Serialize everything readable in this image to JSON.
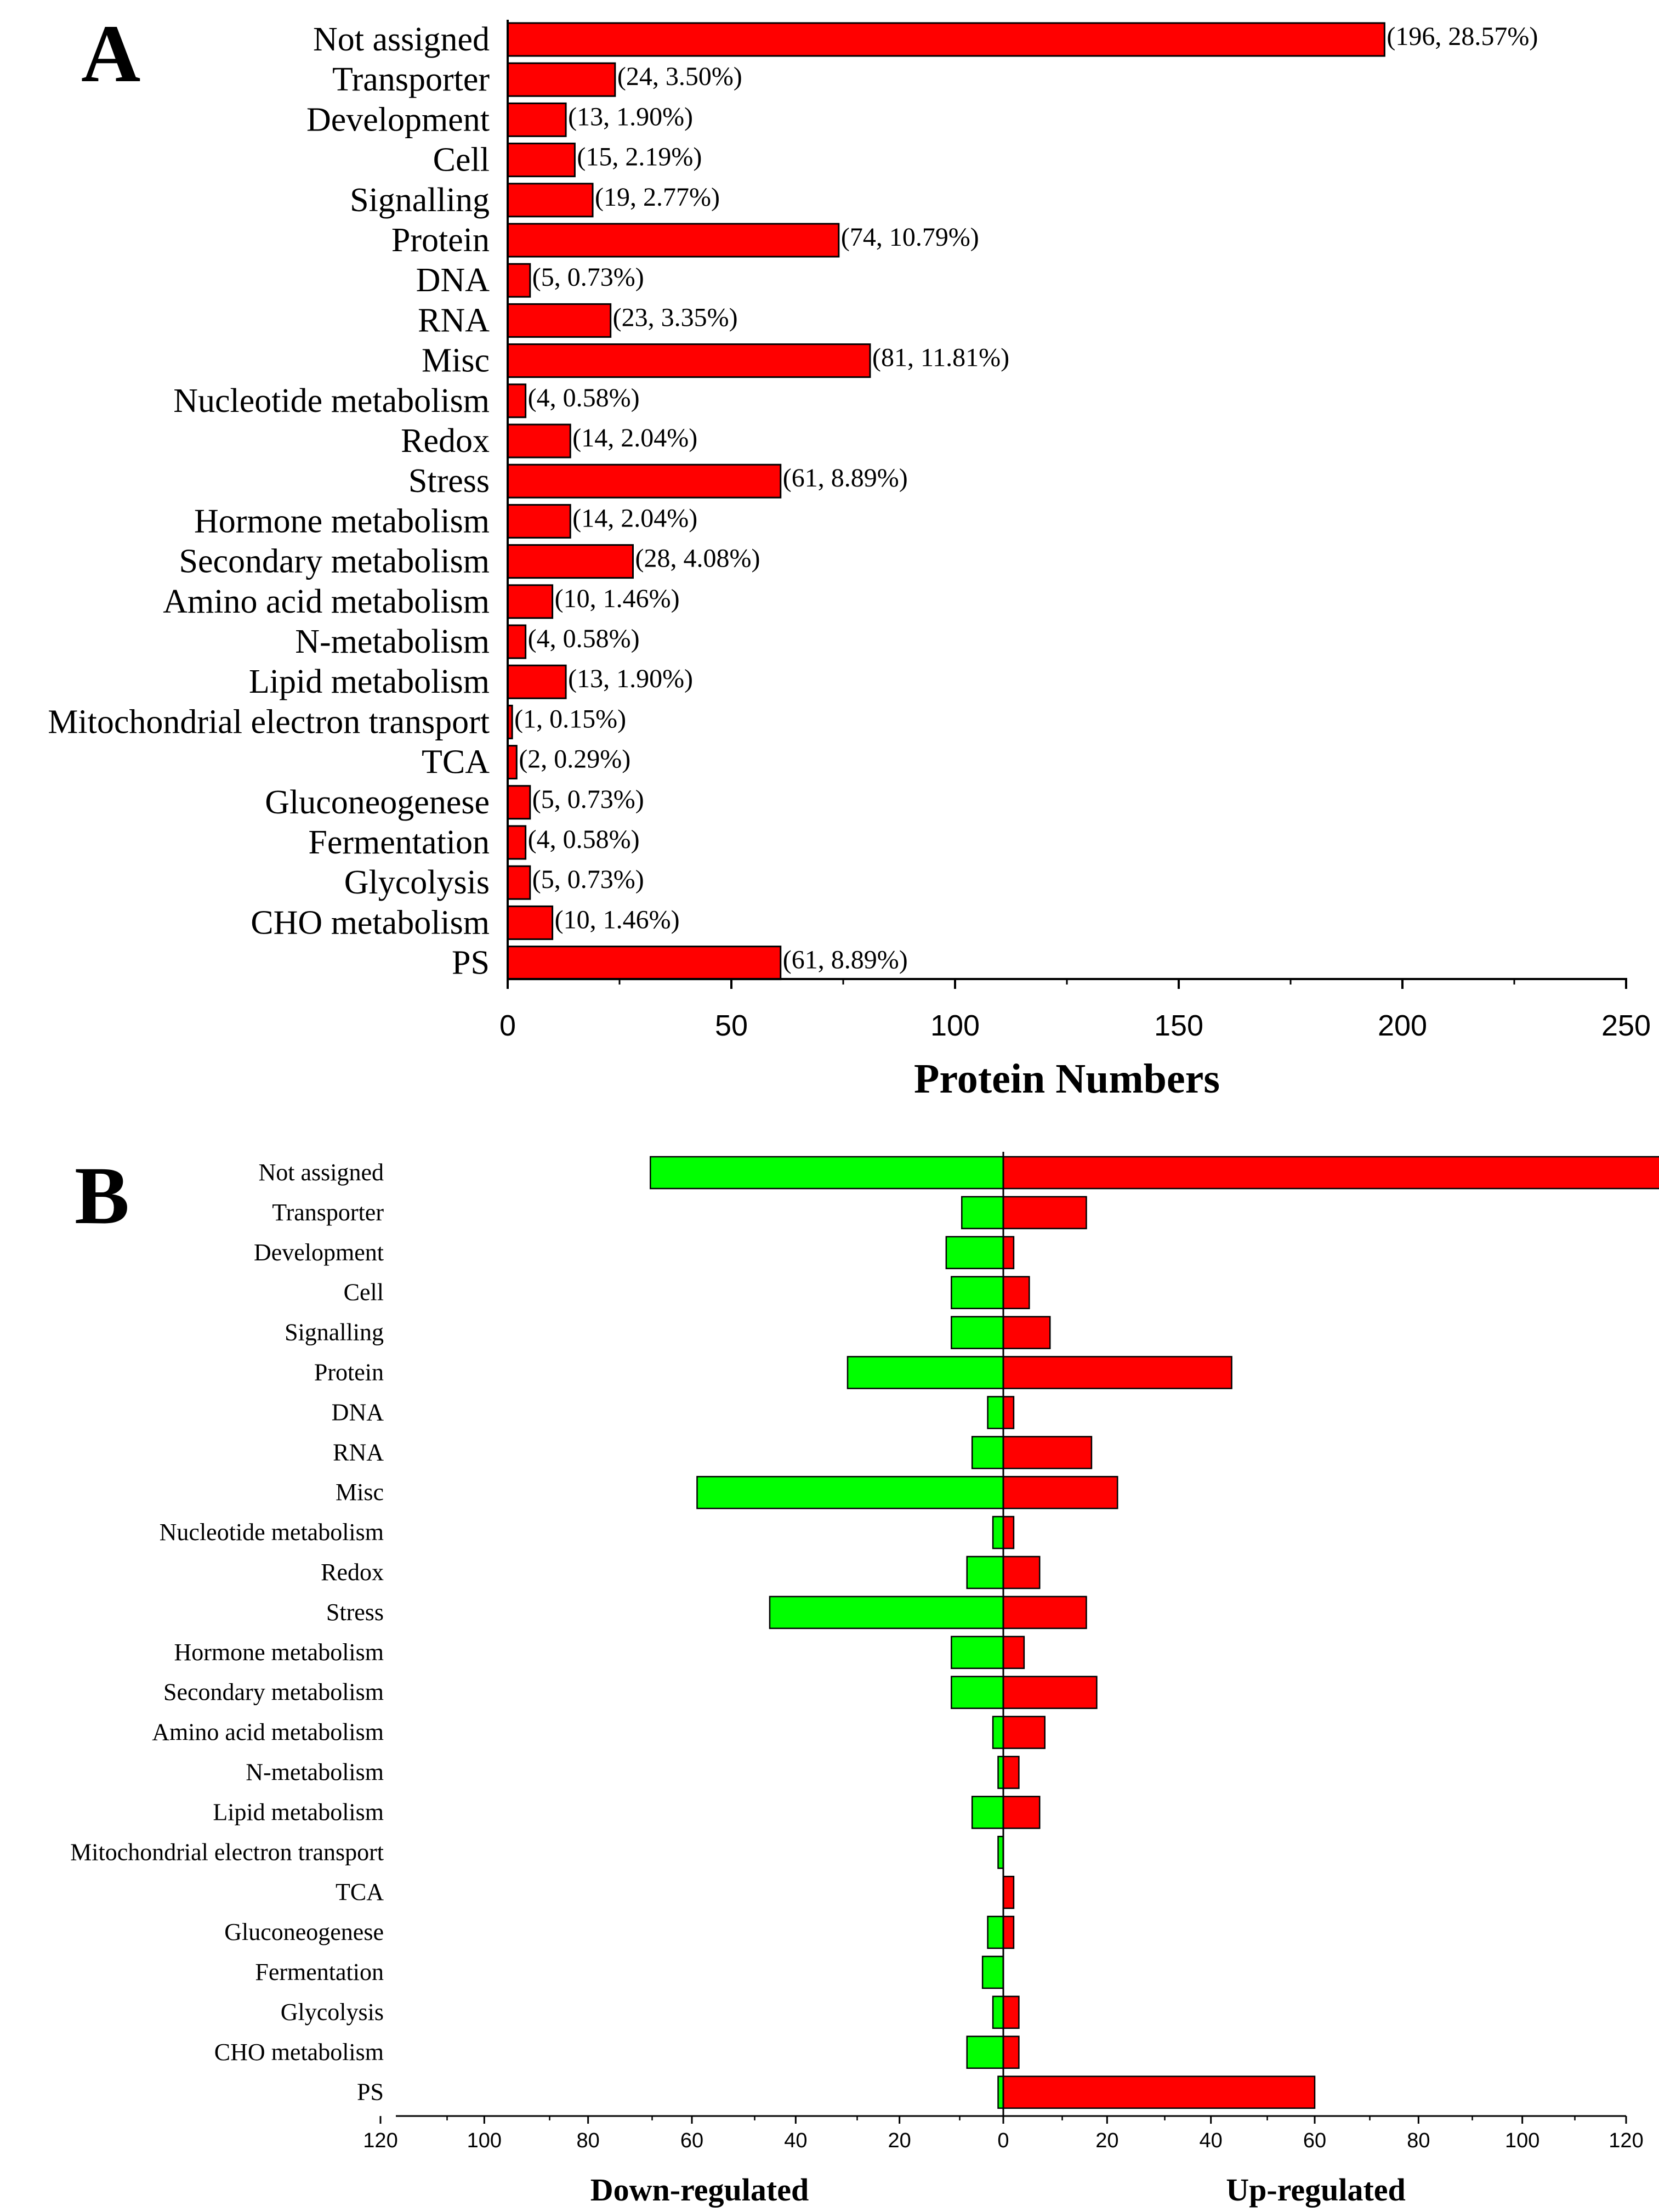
{
  "chart_data": [
    {
      "panel": "A",
      "type": "bar",
      "orientation": "horizontal",
      "categories": [
        "Not assigned",
        "Transporter",
        "Development",
        "Cell",
        "Signalling",
        "Protein",
        "DNA",
        "RNA",
        "Misc",
        "Nucleotide metabolism",
        "Redox",
        "Stress",
        "Hormone metabolism",
        "Secondary metabolism",
        "Amino acid metabolism",
        "N-metabolism",
        "Lipid metabolism",
        "Mitochondrial electron transport",
        "TCA",
        "Gluconeogenese",
        "Fermentation",
        "Glycolysis",
        "CHO metabolism",
        "PS"
      ],
      "values": [
        196,
        24,
        13,
        15,
        19,
        74,
        5,
        23,
        81,
        4,
        14,
        61,
        14,
        28,
        10,
        4,
        13,
        1,
        2,
        5,
        4,
        5,
        10,
        61
      ],
      "labels": [
        "(196, 28.57%)",
        "(24, 3.50%)",
        "(13, 1.90%)",
        "(15, 2.19%)",
        "(19, 2.77%)",
        "(74, 10.79%)",
        "(5, 0.73%)",
        "(23, 3.35%)",
        "(81, 11.81%)",
        "(4, 0.58%)",
        "(14, 2.04%)",
        "(61, 8.89%)",
        "(14, 2.04%)",
        "(28, 4.08%)",
        "(10, 1.46%)",
        "(4, 0.58%)",
        "(13, 1.90%)",
        "(1, 0.15%)",
        "(2, 0.29%)",
        "(5, 0.73%)",
        "(4, 0.58%)",
        "(5, 0.73%)",
        "(10, 1.46%)",
        "(61, 8.89%)"
      ],
      "xticks": [
        "0",
        "50",
        "100",
        "150",
        "200",
        "250"
      ],
      "xlim": [
        0,
        250
      ],
      "xlabel": "Protein Numbers",
      "color": "#ff0000"
    },
    {
      "panel": "B",
      "type": "bar",
      "orientation": "horizontal-diverging",
      "categories": [
        "Not assigned",
        "Transporter",
        "Development",
        "Cell",
        "Signalling",
        "Protein",
        "DNA",
        "RNA",
        "Misc",
        "Nucleotide metabolism",
        "Redox",
        "Stress",
        "Hormone metabolism",
        "Secondary metabolism",
        "Amino acid metabolism",
        "N-metabolism",
        "Lipid metabolism",
        "Mitochondrial electron transport",
        "TCA",
        "Gluconeogenese",
        "Fermentation",
        "Glycolysis",
        "CHO metabolism",
        "PS"
      ],
      "series": [
        {
          "name": "Down-regulated",
          "color": "#00ff00",
          "values": [
            68,
            8,
            11,
            10,
            10,
            30,
            3,
            6,
            59,
            2,
            7,
            45,
            10,
            10,
            2,
            1,
            6,
            1,
            0,
            3,
            4,
            2,
            7,
            1
          ]
        },
        {
          "name": "Up-regulated",
          "color": "#ff0000",
          "values": [
            128,
            16,
            2,
            5,
            9,
            44,
            2,
            17,
            22,
            2,
            7,
            16,
            4,
            18,
            8,
            3,
            7,
            0,
            2,
            2,
            0,
            3,
            3,
            60
          ]
        }
      ],
      "xticks": [
        "120",
        "100",
        "80",
        "60",
        "40",
        "20",
        "0",
        "20",
        "40",
        "60",
        "80",
        "100",
        "120"
      ],
      "xlim": [
        -120,
        120
      ],
      "xlabel_left": "Down-regulated",
      "xlabel_right": "Up-regulated"
    }
  ]
}
